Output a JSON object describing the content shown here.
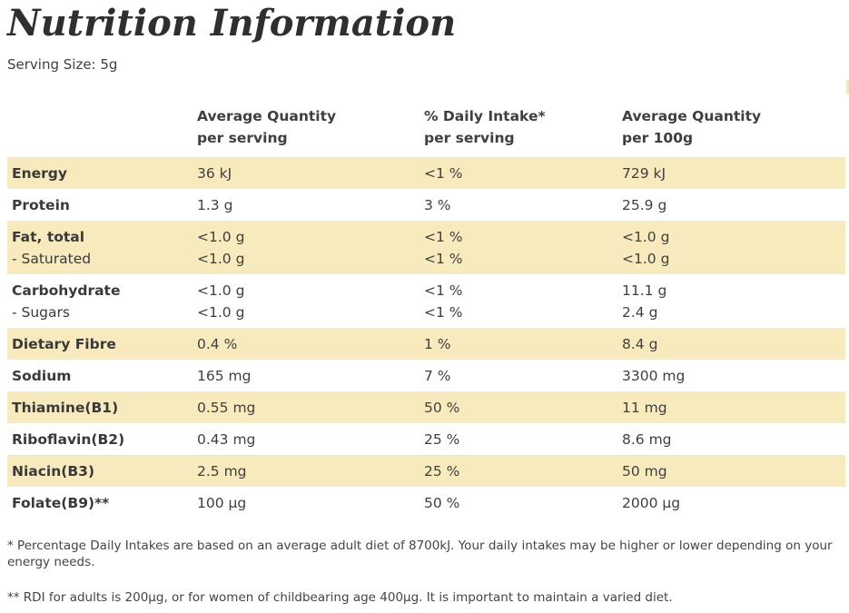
{
  "title": "Nutrition Information",
  "serving_size": "Serving Size: 5g",
  "columns": {
    "c1_line1": "Average Quantity",
    "c1_line2": "per serving",
    "c2_line1": "% Daily Intake*",
    "c2_line2": "per serving",
    "c3_line1": "Average Quantity",
    "c3_line2": "per 100g"
  },
  "rows": [
    {
      "name": "Energy",
      "per_serving": "36 kJ",
      "daily": "<1 %",
      "per_100g": "729 kJ"
    },
    {
      "name": "Protein",
      "per_serving": "1.3 g",
      "daily": "3 %",
      "per_100g": "25.9 g"
    },
    {
      "name": "Fat, total",
      "per_serving": "<1.0 g",
      "daily": "<1 %",
      "per_100g": "<1.0 g",
      "sub_name": "- Saturated",
      "sub_per_serving": "<1.0 g",
      "sub_daily": "<1 %",
      "sub_per_100g": "<1.0 g"
    },
    {
      "name": "Carbohydrate",
      "per_serving": "<1.0 g",
      "daily": "<1 %",
      "per_100g": "11.1 g",
      "sub_name": "- Sugars",
      "sub_per_serving": "<1.0 g",
      "sub_daily": "<1 %",
      "sub_per_100g": "2.4 g"
    },
    {
      "name": "Dietary Fibre",
      "per_serving": "0.4 %",
      "daily": "1 %",
      "per_100g": "8.4 g"
    },
    {
      "name": "Sodium",
      "per_serving": "165 mg",
      "daily": "7 %",
      "per_100g": "3300 mg"
    },
    {
      "name": "Thiamine(B1)",
      "per_serving": "0.55 mg",
      "daily": "50 %",
      "per_100g": "11 mg"
    },
    {
      "name": "Riboflavin(B2)",
      "per_serving": "0.43 mg",
      "daily": "25 %",
      "per_100g": "8.6 mg"
    },
    {
      "name": "Niacin(B3)",
      "per_serving": "2.5 mg",
      "daily": "25 %",
      "per_100g": "50 mg"
    },
    {
      "name": "Folate(B9)**",
      "per_serving": "100 µg",
      "daily": "50 %",
      "per_100g": "2000 µg"
    }
  ],
  "footnotes": {
    "note1": "* Percentage Daily Intakes are based on an average adult diet of 8700kJ. Your daily intakes may be higher or lower depending on your energy needs.",
    "note2": "** RDI for adults is 200µg, or for women of childbearing age 400µg. It is important to maintain a varied diet."
  },
  "colors": {
    "row_highlight": "#f7ebbd",
    "text": "#3f3f3f"
  }
}
